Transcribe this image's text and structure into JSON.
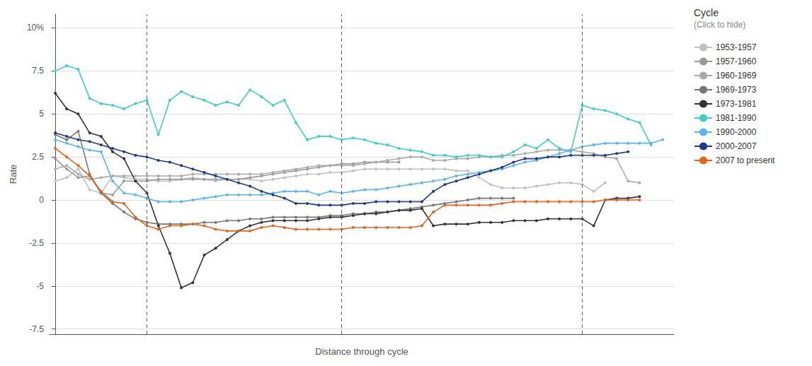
{
  "chart_data": {
    "type": "line",
    "xlabel": "Distance through cycle",
    "ylabel": "Rate",
    "xlim": [
      -0.5,
      54
    ],
    "ylim": [
      -7.8,
      10.8
    ],
    "yticks": [
      -7.5,
      -5,
      -2.5,
      0,
      2.5,
      5,
      7.5,
      {
        "value": 10,
        "label": "10%"
      }
    ],
    "tick_labels": "y",
    "grid": true,
    "marker": "circle",
    "vlines": [
      8,
      25,
      46
    ],
    "legend_title": "Cycle",
    "legend_subtitle": "(Click to hide)",
    "series": [
      {
        "name": "1953-1957",
        "color": "#c0c0c0",
        "x": [
          0,
          1,
          2,
          3,
          4,
          5,
          6,
          7,
          8,
          9,
          10,
          11,
          12,
          13,
          14,
          15,
          16,
          17,
          18,
          19,
          20,
          21,
          22,
          23,
          24,
          25,
          26,
          27,
          28,
          29,
          30,
          31,
          32,
          33,
          34,
          35,
          36,
          37,
          38,
          39,
          40,
          41,
          42,
          43,
          44,
          45,
          46,
          47,
          48
        ],
        "values": [
          1.1,
          1.3,
          1.8,
          0.6,
          0.4,
          1.4,
          1.3,
          1.2,
          1.2,
          1.1,
          1.1,
          1.2,
          1.3,
          1.2,
          1.1,
          1.2,
          1.2,
          1.2,
          1.1,
          1.2,
          1.3,
          1.4,
          1.5,
          1.5,
          1.6,
          1.6,
          1.7,
          1.8,
          1.8,
          1.8,
          1.8,
          1.8,
          1.8,
          1.8,
          1.8,
          1.7,
          1.7,
          1.3,
          0.9,
          0.7,
          0.7,
          0.7,
          0.8,
          0.9,
          1.0,
          1.0,
          0.9,
          0.5,
          1.0
        ]
      },
      {
        "name": "1957-1960",
        "color": "#999999",
        "x": [
          0,
          1,
          2,
          3,
          4,
          5,
          6,
          7,
          8,
          9,
          10,
          11,
          12,
          13,
          14,
          15,
          16,
          17,
          18,
          19,
          20,
          21,
          22,
          23,
          24,
          25,
          26,
          27,
          28,
          29,
          30
        ],
        "values": [
          2.4,
          1.8,
          1.3,
          1.4,
          0.4,
          0.3,
          1.1,
          1.1,
          1.1,
          1.2,
          1.2,
          1.2,
          1.2,
          1.2,
          1.2,
          1.2,
          1.2,
          1.3,
          1.4,
          1.5,
          1.6,
          1.7,
          1.8,
          1.9,
          2.0,
          2.1,
          2.1,
          2.2,
          2.2,
          2.2,
          2.2
        ]
      },
      {
        "name": "1960-1969",
        "color": "#aaaaaa",
        "x": [
          0,
          1,
          2,
          3,
          4,
          5,
          6,
          7,
          8,
          9,
          10,
          11,
          12,
          13,
          14,
          15,
          16,
          17,
          18,
          19,
          20,
          21,
          22,
          23,
          24,
          25,
          26,
          27,
          28,
          29,
          30,
          31,
          32,
          33,
          34,
          35,
          36,
          37,
          38,
          39,
          40,
          41,
          42,
          43,
          44,
          45,
          46,
          47,
          48,
          49,
          50,
          51
        ],
        "values": [
          1.8,
          2.0,
          1.5,
          1.2,
          1.3,
          1.4,
          1.4,
          1.4,
          1.4,
          1.4,
          1.4,
          1.4,
          1.5,
          1.5,
          1.5,
          1.5,
          1.5,
          1.5,
          1.5,
          1.6,
          1.7,
          1.8,
          1.9,
          2.0,
          2.0,
          2.0,
          2.0,
          2.1,
          2.2,
          2.3,
          2.4,
          2.5,
          2.5,
          2.3,
          2.3,
          2.4,
          2.4,
          2.5,
          2.5,
          2.6,
          2.6,
          2.7,
          2.8,
          2.9,
          2.9,
          2.9,
          2.8,
          2.7,
          2.5,
          2.4,
          1.1,
          1.0
        ]
      },
      {
        "name": "1969-1973",
        "color": "#777777",
        "x": [
          0,
          1,
          2,
          3,
          4,
          5,
          6,
          7,
          8,
          9,
          10,
          11,
          12,
          13,
          14,
          15,
          16,
          17,
          18,
          19,
          20,
          21,
          22,
          23,
          24,
          25,
          26,
          27,
          28,
          29,
          30,
          31,
          32,
          33,
          34,
          35,
          36,
          37,
          38,
          39,
          40
        ],
        "values": [
          3.8,
          3.5,
          4.0,
          1.5,
          0.4,
          -0.2,
          -0.7,
          -1.1,
          -1.3,
          -1.4,
          -1.4,
          -1.4,
          -1.4,
          -1.3,
          -1.3,
          -1.2,
          -1.2,
          -1.1,
          -1.1,
          -1.0,
          -1.0,
          -1.0,
          -1.0,
          -1.0,
          -0.9,
          -0.9,
          -0.8,
          -0.8,
          -0.7,
          -0.7,
          -0.6,
          -0.5,
          -0.4,
          -0.3,
          -0.2,
          -0.1,
          0.0,
          0.1,
          0.1,
          0.1,
          0.1
        ]
      },
      {
        "name": "1973-1981",
        "color": "#333333",
        "x": [
          0,
          1,
          2,
          3,
          4,
          5,
          6,
          7,
          8,
          9,
          10,
          11,
          12,
          13,
          14,
          15,
          16,
          17,
          18,
          19,
          20,
          21,
          22,
          23,
          24,
          25,
          26,
          27,
          28,
          29,
          30,
          31,
          32,
          33,
          34,
          35,
          36,
          37,
          38,
          39,
          40,
          41,
          42,
          43,
          44,
          45,
          46,
          47,
          48,
          49,
          50,
          51
        ],
        "values": [
          6.2,
          5.3,
          5.0,
          3.9,
          3.7,
          2.8,
          2.4,
          1.1,
          0.4,
          -1.5,
          -3.1,
          -5.1,
          -4.8,
          -3.2,
          -2.8,
          -2.3,
          -1.8,
          -1.5,
          -1.3,
          -1.2,
          -1.2,
          -1.2,
          -1.2,
          -1.1,
          -1.0,
          -1.0,
          -0.9,
          -0.8,
          -0.8,
          -0.7,
          -0.6,
          -0.6,
          -0.5,
          -1.5,
          -1.4,
          -1.4,
          -1.4,
          -1.3,
          -1.3,
          -1.3,
          -1.2,
          -1.2,
          -1.2,
          -1.1,
          -1.1,
          -1.1,
          -1.1,
          -1.5,
          0.0,
          0.1,
          0.1,
          0.2
        ]
      },
      {
        "name": "1981-1990",
        "color": "#3dcfc7",
        "x": [
          0,
          1,
          2,
          3,
          4,
          5,
          6,
          7,
          8,
          9,
          10,
          11,
          12,
          13,
          14,
          15,
          16,
          17,
          18,
          19,
          20,
          21,
          22,
          23,
          24,
          25,
          26,
          27,
          28,
          29,
          30,
          31,
          32,
          33,
          34,
          35,
          36,
          37,
          38,
          39,
          40,
          41,
          42,
          43,
          44,
          45,
          46,
          47,
          48,
          49,
          50,
          51,
          52
        ],
        "values": [
          7.5,
          7.8,
          7.6,
          5.9,
          5.6,
          5.5,
          5.3,
          5.6,
          5.8,
          3.8,
          5.8,
          6.3,
          6.0,
          5.8,
          5.5,
          5.7,
          5.5,
          6.4,
          6.0,
          5.5,
          5.8,
          4.5,
          3.5,
          3.7,
          3.7,
          3.5,
          3.6,
          3.5,
          3.3,
          3.2,
          3.0,
          2.9,
          2.8,
          2.6,
          2.6,
          2.5,
          2.6,
          2.6,
          2.5,
          2.5,
          2.8,
          3.2,
          3.0,
          3.5,
          3.0,
          2.8,
          5.5,
          5.3,
          5.2,
          5.0,
          4.7,
          4.5,
          3.2
        ]
      },
      {
        "name": "1990-2000",
        "color": "#5ab4f0",
        "x": [
          0,
          1,
          2,
          3,
          4,
          5,
          6,
          7,
          8,
          9,
          10,
          11,
          12,
          13,
          14,
          15,
          16,
          17,
          18,
          19,
          20,
          21,
          22,
          23,
          24,
          25,
          26,
          27,
          28,
          29,
          30,
          31,
          32,
          33,
          34,
          35,
          36,
          37,
          38,
          39,
          40,
          41,
          42,
          43,
          44,
          45,
          46,
          47,
          48,
          49,
          50,
          51,
          52,
          53
        ],
        "values": [
          3.5,
          3.3,
          3.1,
          2.9,
          2.8,
          1.1,
          0.4,
          0.3,
          0.1,
          -0.1,
          -0.1,
          -0.1,
          0.0,
          0.1,
          0.2,
          0.3,
          0.3,
          0.3,
          0.3,
          0.4,
          0.5,
          0.5,
          0.5,
          0.3,
          0.5,
          0.4,
          0.5,
          0.6,
          0.6,
          0.7,
          0.8,
          0.9,
          1.0,
          1.1,
          1.2,
          1.4,
          1.5,
          1.6,
          1.7,
          1.8,
          2.0,
          2.2,
          2.3,
          2.5,
          2.7,
          2.9,
          3.1,
          3.2,
          3.3,
          3.3,
          3.3,
          3.3,
          3.3,
          3.5
        ]
      },
      {
        "name": "2000-2007",
        "color": "#1e3a8a",
        "x": [
          0,
          1,
          2,
          3,
          4,
          5,
          6,
          7,
          8,
          9,
          10,
          11,
          12,
          13,
          14,
          15,
          16,
          17,
          18,
          19,
          20,
          21,
          22,
          23,
          24,
          25,
          26,
          27,
          28,
          29,
          30,
          31,
          32,
          33,
          34,
          35,
          36,
          37,
          38,
          39,
          40,
          41,
          42,
          43,
          44,
          45,
          46,
          47,
          48,
          49,
          50
        ],
        "values": [
          3.9,
          3.7,
          3.5,
          3.4,
          3.2,
          3.0,
          2.8,
          2.6,
          2.5,
          2.3,
          2.2,
          2.0,
          1.8,
          1.6,
          1.4,
          1.2,
          1.0,
          0.8,
          0.5,
          0.3,
          0.1,
          -0.2,
          -0.2,
          -0.3,
          -0.3,
          -0.3,
          -0.2,
          -0.2,
          -0.1,
          -0.1,
          -0.1,
          -0.1,
          -0.1,
          0.5,
          0.9,
          1.1,
          1.3,
          1.5,
          1.7,
          1.9,
          2.2,
          2.4,
          2.4,
          2.5,
          2.5,
          2.6,
          2.6,
          2.6,
          2.6,
          2.7,
          2.8
        ]
      },
      {
        "name": "2007 to present",
        "color": "#e8621a",
        "x": [
          0,
          1,
          2,
          3,
          4,
          5,
          6,
          7,
          8,
          9,
          10,
          11,
          12,
          13,
          14,
          15,
          16,
          17,
          18,
          19,
          20,
          21,
          22,
          23,
          24,
          25,
          26,
          27,
          28,
          29,
          30,
          31,
          32,
          33,
          34,
          35,
          36,
          37,
          38,
          39,
          40,
          41,
          42,
          43,
          44,
          45,
          46,
          47,
          48,
          49,
          50,
          51
        ],
        "values": [
          3.0,
          2.5,
          2.0,
          1.4,
          0.5,
          -0.1,
          -0.2,
          -1.0,
          -1.5,
          -1.7,
          -1.5,
          -1.5,
          -1.4,
          -1.5,
          -1.7,
          -1.8,
          -1.8,
          -1.8,
          -1.6,
          -1.5,
          -1.6,
          -1.7,
          -1.7,
          -1.7,
          -1.7,
          -1.7,
          -1.6,
          -1.6,
          -1.6,
          -1.6,
          -1.6,
          -1.6,
          -1.5,
          -0.7,
          -0.3,
          -0.3,
          -0.3,
          -0.3,
          -0.3,
          -0.2,
          -0.1,
          -0.1,
          -0.1,
          -0.1,
          -0.1,
          -0.1,
          -0.1,
          -0.1,
          0.0,
          0.0,
          0.0,
          0.0
        ]
      }
    ]
  }
}
